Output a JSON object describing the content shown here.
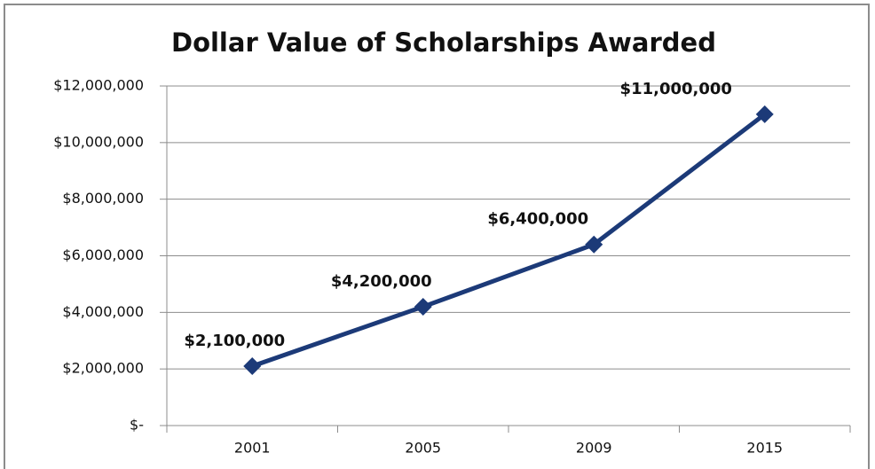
{
  "chart_data": {
    "type": "line",
    "title": "Dollar Value of Scholarships Awarded",
    "categories": [
      "2001",
      "2005",
      "2009",
      "2015"
    ],
    "series": [
      {
        "name": "Dollar Value",
        "color": "#1c3a78",
        "values": [
          2100000,
          4200000,
          6400000,
          11000000
        ],
        "value_labels": [
          "$2,100,000",
          "$4,200,000",
          "$6,400,000",
          "$11,000,000"
        ]
      }
    ],
    "ylim": [
      0,
      12000000
    ],
    "yticks": [
      {
        "value": 0,
        "label": "$-"
      },
      {
        "value": 2000000,
        "label": "$2,000,000"
      },
      {
        "value": 4000000,
        "label": "$4,000,000"
      },
      {
        "value": 6000000,
        "label": "$6,000,000"
      },
      {
        "value": 8000000,
        "label": "$8,000,000"
      },
      {
        "value": 10000000,
        "label": "$10,000,000"
      },
      {
        "value": 12000000,
        "label": "$12,000,000"
      }
    ],
    "grid": true
  }
}
